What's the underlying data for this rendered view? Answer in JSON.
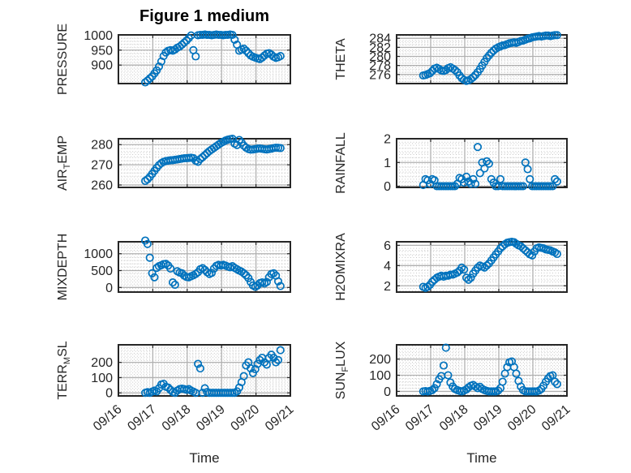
{
  "title": "Figure 1 medium",
  "colors": {
    "marker": "#0072BD",
    "axis": "#262626",
    "grid_major": "#b0b0b0",
    "grid_minor": "#c6c6c6",
    "text": "#262626",
    "background": "#ffffff"
  },
  "chart_data": {
    "type": "scatter",
    "marker": "open-circle",
    "grid": "major-solid, minor-dotted",
    "xlabel": "Time",
    "xlim": [
      0,
      5
    ],
    "xticks": [
      0,
      1,
      2,
      3,
      4,
      5
    ],
    "xticklabels": [
      "09/16",
      "09/17",
      "09/18",
      "09/19",
      "09/20",
      "09/21"
    ],
    "x_minor_step": 0.08333,
    "x_days_since": "09/16",
    "x": [
      0.78,
      0.847,
      0.913,
      0.98,
      1.047,
      1.113,
      1.18,
      1.247,
      1.313,
      1.38,
      1.447,
      1.513,
      1.58,
      1.647,
      1.713,
      1.78,
      1.847,
      1.913,
      1.98,
      2.047,
      2.113,
      2.18,
      2.247,
      2.313,
      2.38,
      2.447,
      2.513,
      2.58,
      2.647,
      2.713,
      2.78,
      2.847,
      2.913,
      2.98,
      3.047,
      3.113,
      3.18,
      3.247,
      3.313,
      3.38,
      3.447,
      3.513,
      3.58,
      3.647,
      3.713,
      3.78,
      3.847,
      3.913,
      3.98,
      4.047,
      4.113,
      4.18,
      4.247,
      4.313,
      4.38,
      4.447,
      4.513,
      4.58,
      4.647,
      4.713
    ],
    "subplots": [
      {
        "name": "pressure",
        "ylabel_pre": "PRESSURE",
        "ylabel_sub": "",
        "ylabel_post": "",
        "yticks": [
          900,
          950,
          1000
        ],
        "ylim": [
          838,
          1001
        ],
        "yminor": 10,
        "xlabel": "",
        "show_xticklabels": false,
        "values": [
          842,
          848,
          855,
          862,
          872,
          882,
          895,
          912,
          930,
          942,
          948,
          950,
          948,
          952,
          958,
          962,
          968,
          975,
          982,
          990,
          999,
          950,
          929,
          1000,
          1001,
          1001,
          1002,
          1001,
          1001,
          1000,
          1001,
          1002,
          1001,
          1001,
          1000,
          1001,
          1001,
          1002,
          1001,
          985,
          968,
          948,
          952,
          955,
          948,
          940,
          932,
          928,
          925,
          922,
          920,
          925,
          932,
          938,
          940,
          935,
          928,
          924,
          926,
          930
        ]
      },
      {
        "name": "theta",
        "ylabel_pre": "THETA",
        "ylabel_sub": "",
        "ylabel_post": "",
        "yticks": [
          276,
          278,
          280,
          282,
          284
        ],
        "ylim": [
          274,
          284.75
        ],
        "yminor": 0.5,
        "xlabel": "",
        "show_xticklabels": false,
        "values": [
          275.8,
          275.9,
          276.1,
          276.3,
          276.8,
          277.3,
          277.5,
          277.2,
          276.9,
          276.8,
          277,
          277.4,
          277.6,
          277.3,
          277,
          276.5,
          275.8,
          275.2,
          274.8,
          274.6,
          274.7,
          275,
          275.4,
          275.9,
          276.5,
          277.2,
          278,
          278.8,
          279.6,
          280.2,
          280.8,
          281.3,
          281.7,
          282,
          282.2,
          282.4,
          282.5,
          282.7,
          282.9,
          283,
          283.1,
          283,
          283.2,
          283.4,
          283.5,
          283.7,
          283.9,
          284,
          284.2,
          284.3,
          284.4,
          284.5,
          284.4,
          284.5,
          284.6,
          284.6,
          284.5,
          284.6,
          284.7,
          284.7
        ]
      },
      {
        "name": "air_temp",
        "ylabel_pre": "AIR",
        "ylabel_sub": "T",
        "ylabel_post": "EMP",
        "yticks": [
          260,
          270,
          280
        ],
        "ylim": [
          258.8,
          282.9
        ],
        "yminor": 2,
        "xlabel": "",
        "show_xticklabels": false,
        "values": [
          262,
          262.8,
          264,
          265.5,
          267,
          268.5,
          269.8,
          270.8,
          271.5,
          271.8,
          272,
          272.2,
          272.3,
          272.5,
          272.6,
          272.8,
          273,
          273.2,
          273.3,
          273.4,
          273.5,
          273.3,
          272,
          271.5,
          272.8,
          273.8,
          274.8,
          275.8,
          276.8,
          277.6,
          278.4,
          279.2,
          280,
          280.8,
          281.4,
          282,
          282.4,
          282.7,
          282.9,
          280.5,
          279.8,
          282.3,
          281,
          279.5,
          278.5,
          277.8,
          277.5,
          277.6,
          277.8,
          278,
          278.1,
          277.9,
          277.7,
          277.6,
          277.8,
          278,
          278.3,
          278.5,
          278.4,
          278.3
        ]
      },
      {
        "name": "rainfall",
        "ylabel_pre": "RAINFALL",
        "ylabel_sub": "",
        "ylabel_post": "",
        "yticks": [
          0,
          1,
          2
        ],
        "ylim": [
          -0.05,
          2
        ],
        "yminor": 0.2,
        "xlabel": "",
        "show_xticklabels": false,
        "values": [
          0.05,
          0.3,
          0.25,
          0.1,
          0.3,
          0.25,
          0,
          0,
          0,
          0,
          0,
          0,
          0,
          0,
          0,
          0.1,
          0.35,
          0.3,
          0.15,
          0.4,
          0.2,
          0.1,
          0.3,
          0.1,
          1.65,
          0.55,
          1,
          0.75,
          1.05,
          0.95,
          0.3,
          0.15,
          0,
          0,
          0.3,
          0,
          0,
          0,
          0,
          0,
          0,
          0,
          0,
          0,
          0,
          1,
          0.72,
          0.3,
          0,
          0,
          0,
          0,
          0,
          0,
          0,
          0,
          0,
          0,
          0.3,
          0.2
        ]
      },
      {
        "name": "mixdepth",
        "ylabel_pre": "MIXDEPTH",
        "ylabel_sub": "",
        "ylabel_post": "",
        "yticks": [
          0,
          500,
          1000
        ],
        "ylim": [
          -137,
          1354
        ],
        "yminor": 100,
        "xlabel": "",
        "show_xticklabels": false,
        "values": [
          1390,
          1290,
          880,
          420,
          300,
          580,
          630,
          660,
          690,
          700,
          650,
          560,
          150,
          80,
          480,
          440,
          420,
          350,
          310,
          300,
          330,
          360,
          400,
          450,
          540,
          570,
          520,
          450,
          400,
          430,
          560,
          640,
          670,
          650,
          670,
          650,
          620,
          600,
          630,
          580,
          540,
          500,
          470,
          420,
          360,
          280,
          160,
          60,
          20,
          60,
          130,
          150,
          120,
          160,
          300,
          400,
          420,
          350,
          180,
          40
        ]
      },
      {
        "name": "h2omixra",
        "ylabel_pre": "H2OMIXRA",
        "ylabel_sub": "",
        "ylabel_post": "",
        "yticks": [
          2,
          4,
          6
        ],
        "ylim": [
          1.38,
          6.35
        ],
        "yminor": 0.5,
        "xlabel": "",
        "show_xticklabels": false,
        "values": [
          1.9,
          1.8,
          1.9,
          2.1,
          2.4,
          2.6,
          2.8,
          2.9,
          3,
          2.9,
          3,
          3,
          3.1,
          3.1,
          3.2,
          3.3,
          3.5,
          3.8,
          3.6,
          2.8,
          2.6,
          2.8,
          3.2,
          3.5,
          3.8,
          4,
          3.9,
          3.8,
          4,
          4.2,
          4.5,
          4.8,
          5.1,
          5.4,
          5.7,
          5.9,
          6.1,
          6.25,
          6.3,
          6.35,
          6.3,
          6.15,
          6,
          5.9,
          5.7,
          5.5,
          5.3,
          5.1,
          5,
          5.4,
          5.7,
          5.8,
          5.75,
          5.7,
          5.6,
          5.55,
          5.5,
          5.4,
          5.3,
          5.15
        ]
      },
      {
        "name": "terr_msl",
        "ylabel_pre": "TERR",
        "ylabel_sub": "M",
        "ylabel_post": "SL",
        "yticks": [
          0,
          100,
          200
        ],
        "ylim": [
          -20,
          315
        ],
        "yminor": 20,
        "xlabel": "Time",
        "show_xticklabels": true,
        "values": [
          0,
          5,
          0,
          8,
          15,
          10,
          30,
          55,
          60,
          40,
          35,
          20,
          5,
          0,
          15,
          25,
          28,
          25,
          20,
          25,
          15,
          8,
          0,
          190,
          160,
          0,
          30,
          5,
          0,
          0,
          0,
          0,
          0,
          0,
          0,
          0,
          0,
          0,
          0,
          0,
          10,
          35,
          70,
          110,
          180,
          200,
          160,
          130,
          155,
          190,
          215,
          230,
          200,
          185,
          230,
          250,
          230,
          200,
          215,
          280
        ]
      },
      {
        "name": "sun_flux",
        "ylabel_pre": "SUN",
        "ylabel_sub": "F",
        "ylabel_post": "LUX",
        "yticks": [
          0,
          100,
          200
        ],
        "ylim": [
          -28,
          288
        ],
        "yminor": 20,
        "xlabel": "Time",
        "show_xticklabels": true,
        "values": [
          0,
          2,
          0,
          3,
          8,
          20,
          45,
          75,
          95,
          160,
          270,
          100,
          55,
          30,
          15,
          8,
          3,
          0,
          5,
          12,
          25,
          35,
          40,
          30,
          20,
          28,
          15,
          8,
          3,
          0,
          0,
          0,
          0,
          5,
          20,
          60,
          110,
          150,
          180,
          185,
          150,
          110,
          65,
          30,
          8,
          0,
          0,
          0,
          0,
          0,
          0,
          5,
          15,
          35,
          60,
          80,
          95,
          100,
          60,
          45
        ]
      }
    ]
  }
}
